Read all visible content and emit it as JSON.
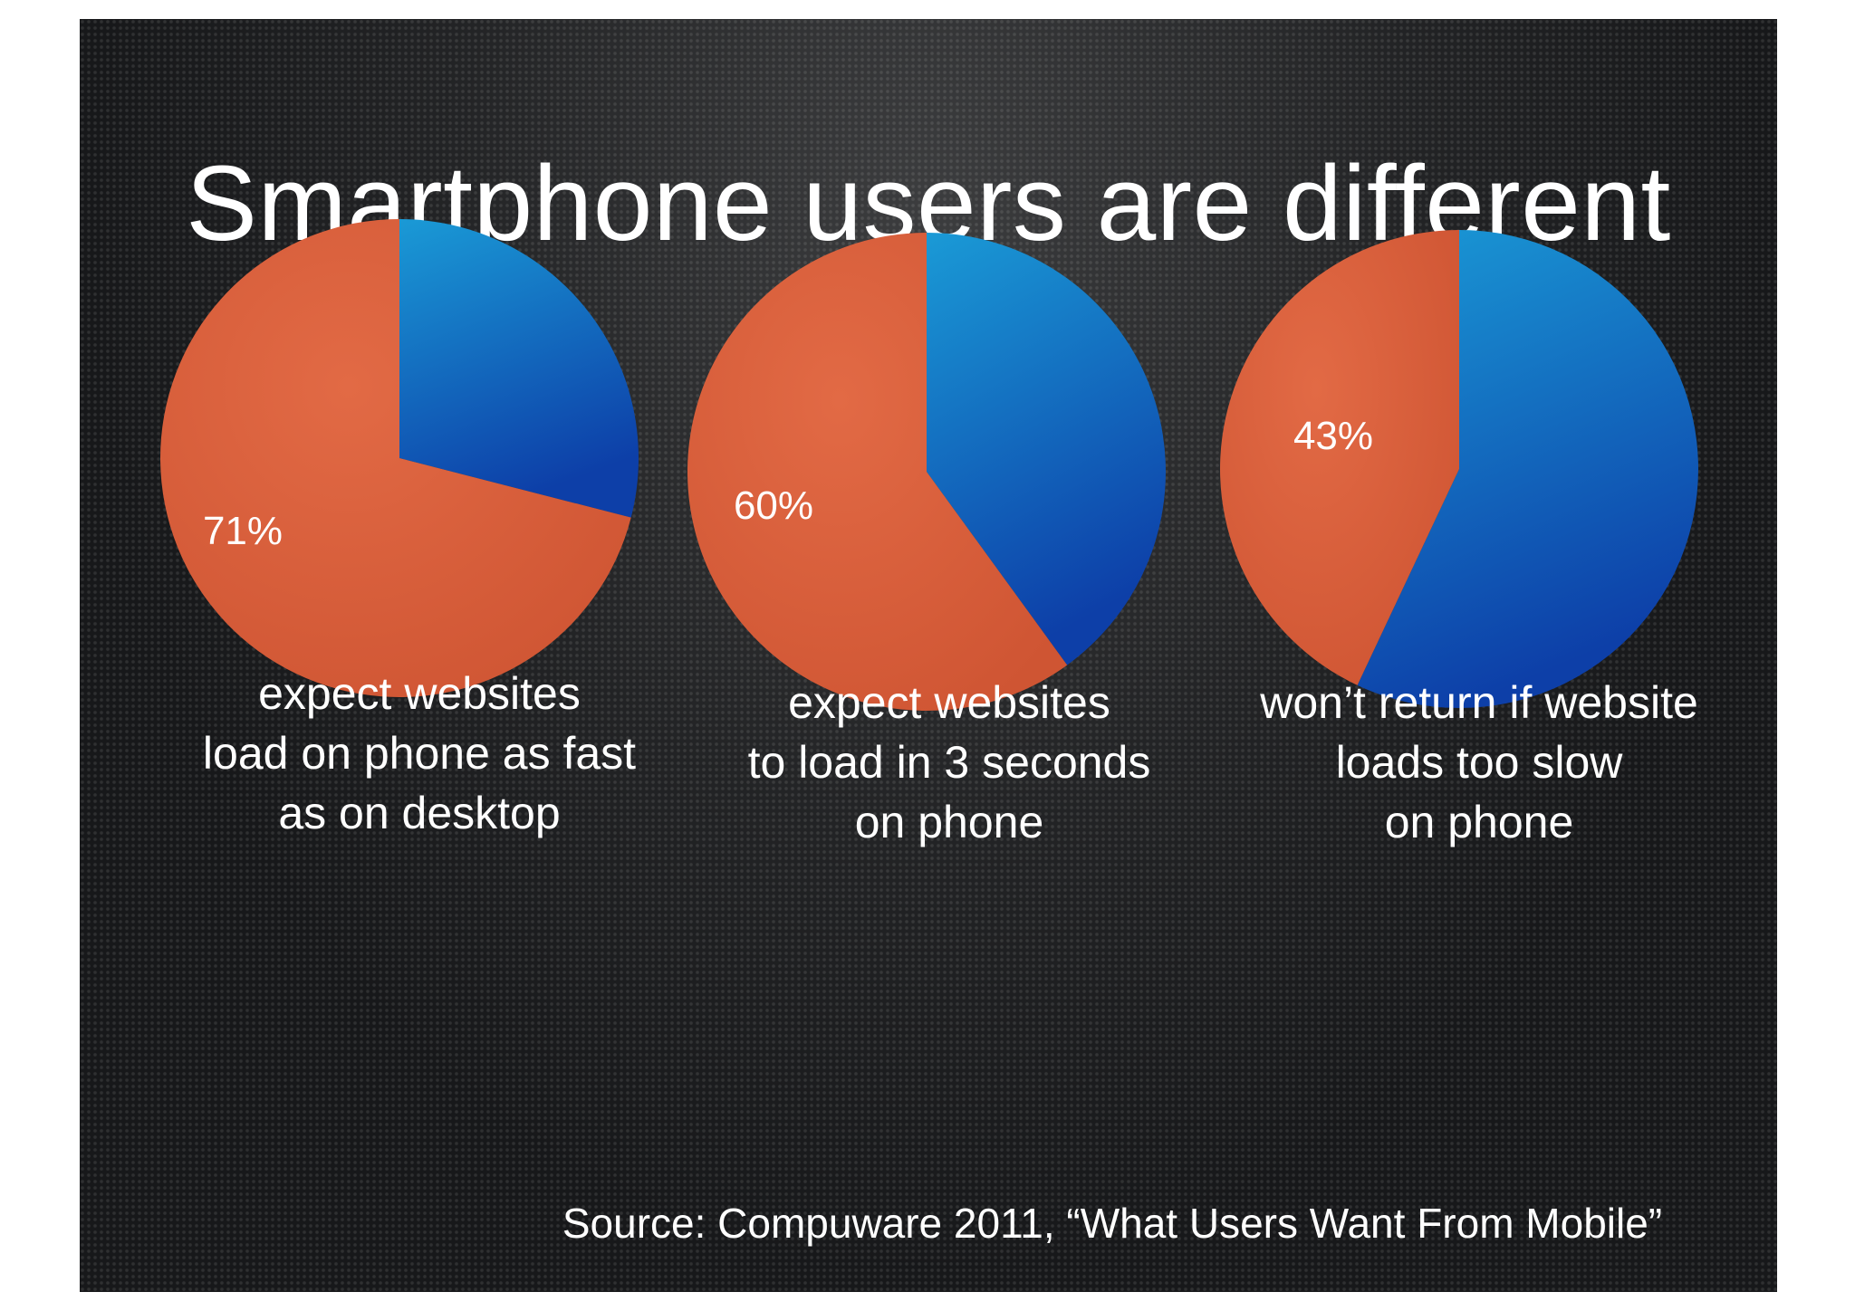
{
  "slide": {
    "title": "Smartphone users are different",
    "source": "Source: Compuware 2011, “What Users Want From Mobile”"
  },
  "colors": {
    "orange": "#d95f3a",
    "blue": "#1565c0",
    "background": "#17181a",
    "text": "#ffffff"
  },
  "chart_data": [
    {
      "type": "pie",
      "slices": [
        {
          "value": 71,
          "color": "#d95f3a",
          "label": "71%"
        },
        {
          "value": 29,
          "color": "#1565c0"
        }
      ],
      "caption": [
        "expect websites",
        "load on phone as fast",
        "as on desktop"
      ]
    },
    {
      "type": "pie",
      "slices": [
        {
          "value": 60,
          "color": "#d95f3a",
          "label": "60%"
        },
        {
          "value": 40,
          "color": "#1565c0"
        }
      ],
      "caption": [
        "expect websites",
        "to load in 3 seconds",
        "on phone"
      ]
    },
    {
      "type": "pie",
      "slices": [
        {
          "value": 43,
          "color": "#d95f3a",
          "label": "43%"
        },
        {
          "value": 57,
          "color": "#1565c0"
        }
      ],
      "caption": [
        "won’t return if website",
        "loads too slow",
        "on phone"
      ]
    }
  ]
}
